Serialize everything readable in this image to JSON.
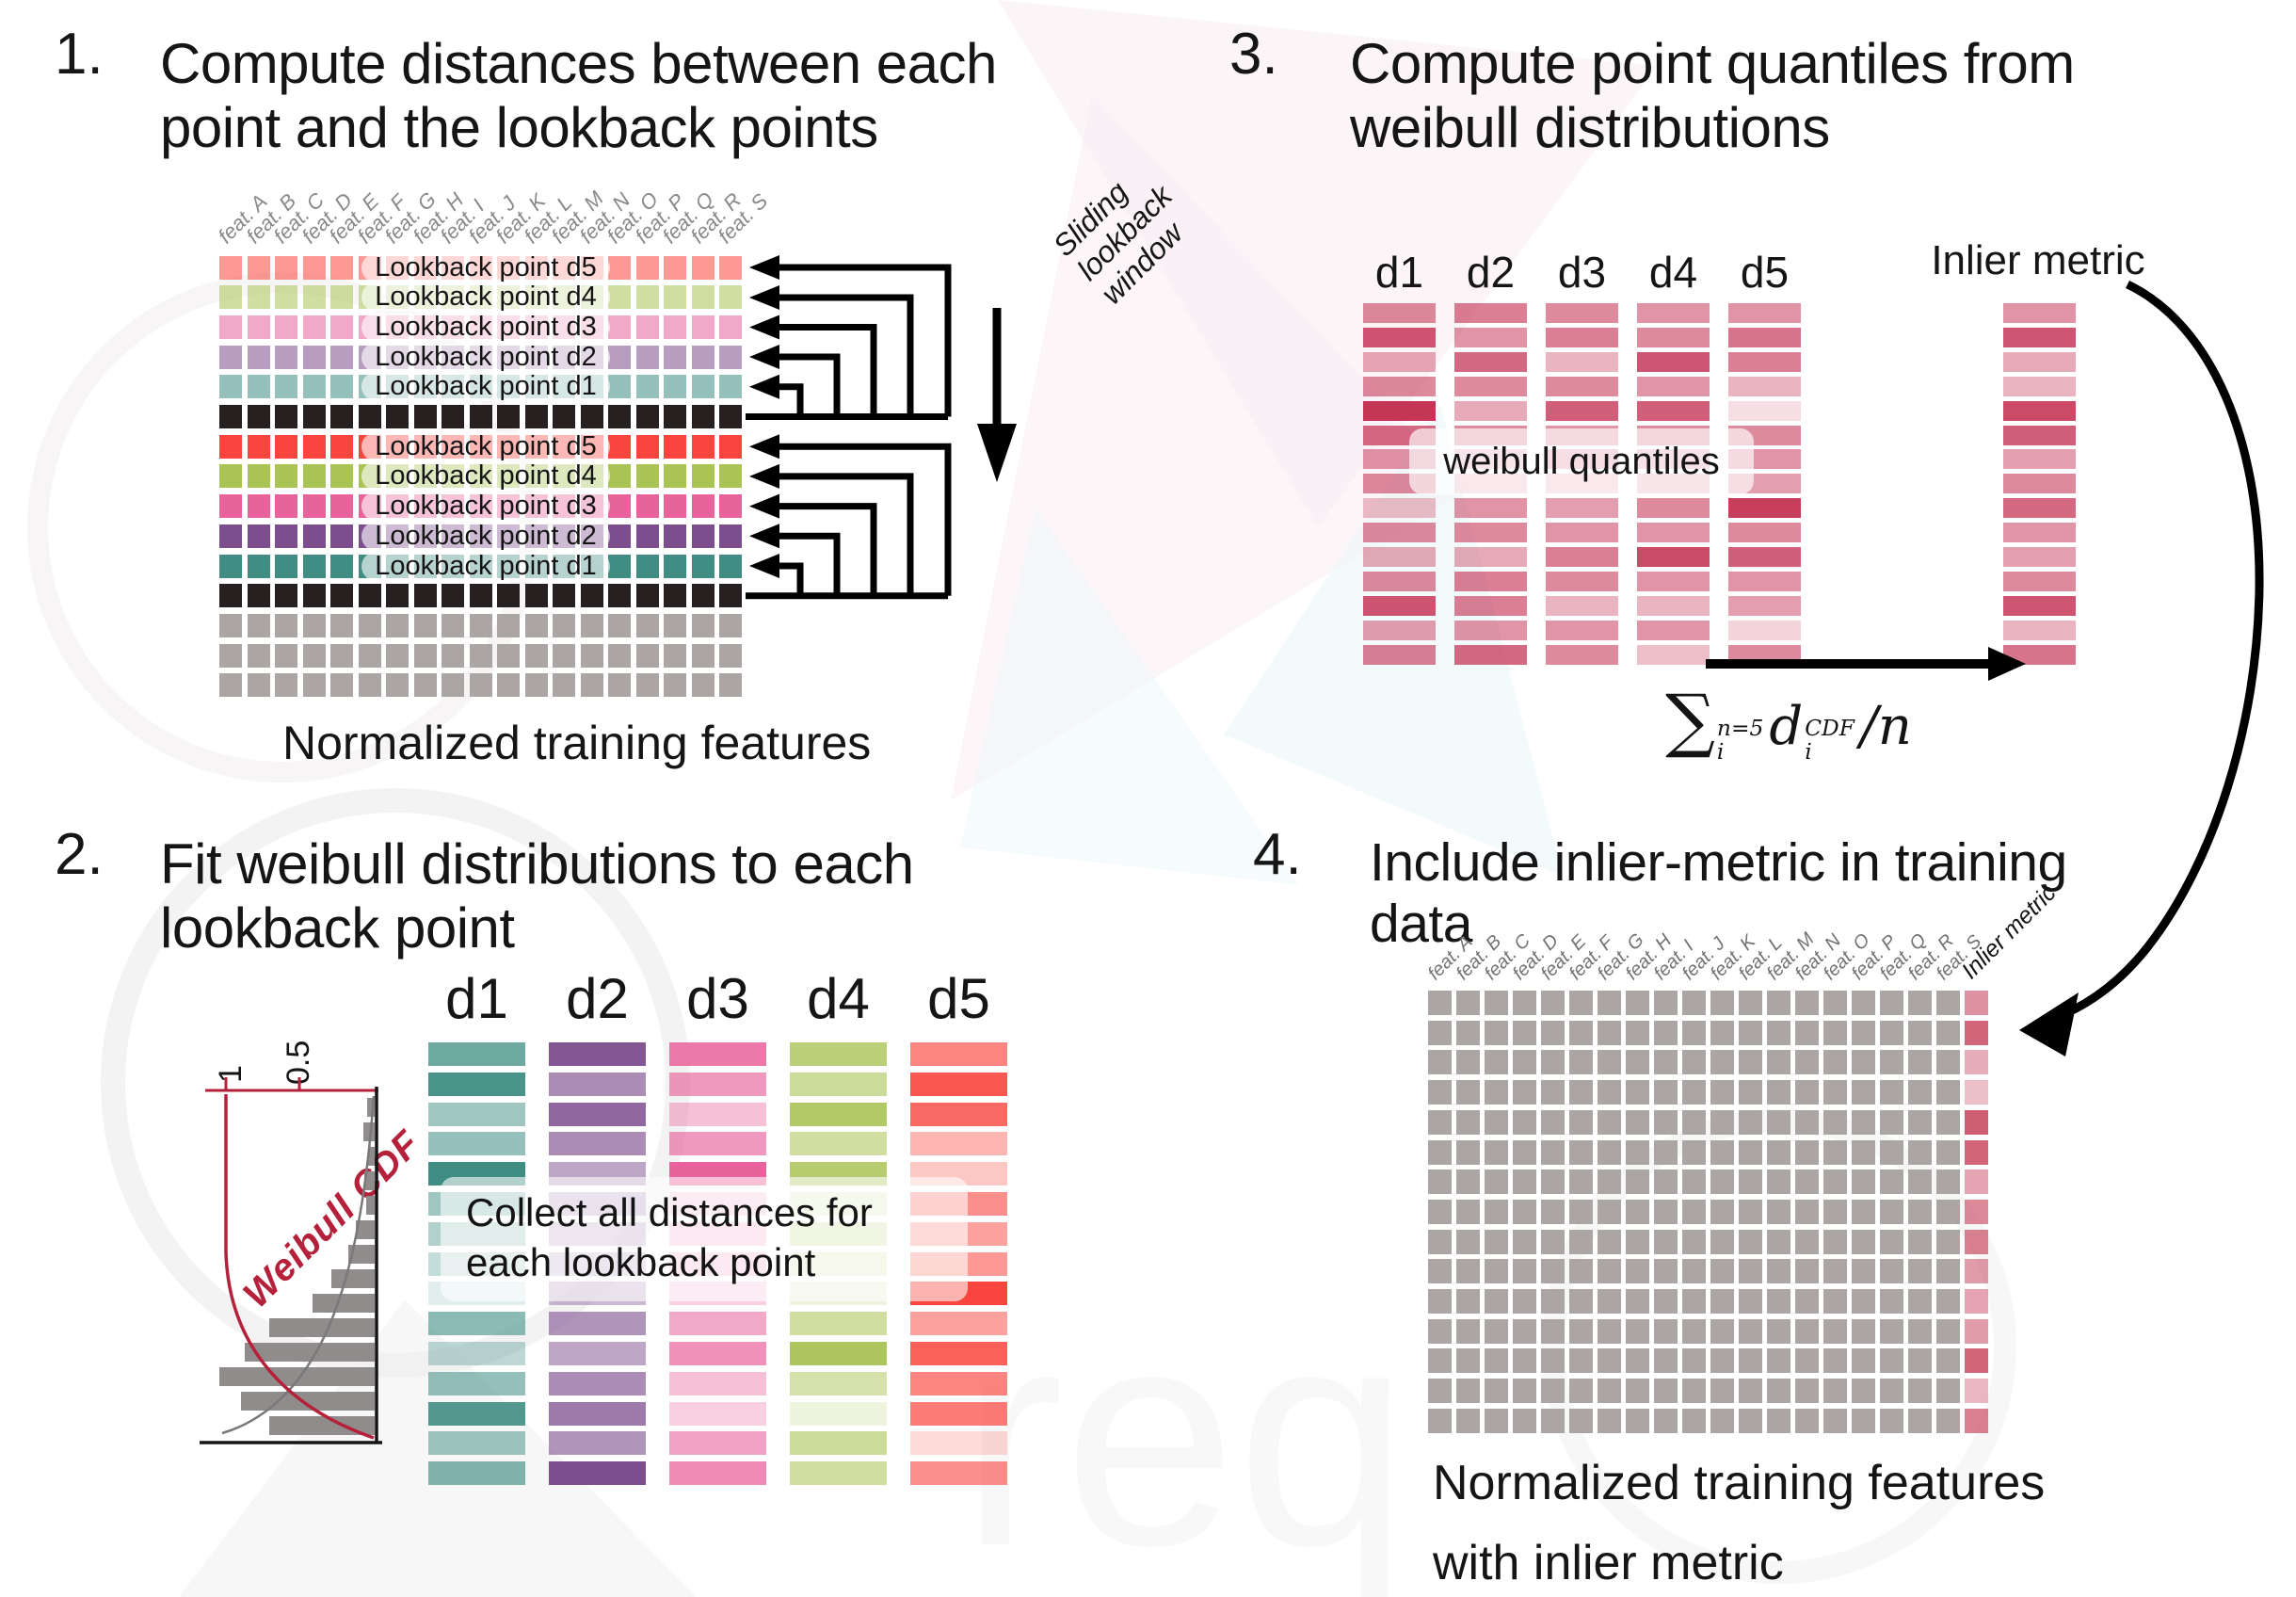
{
  "colors": {
    "d1": "#3F8D83",
    "d2": "#7C4E8E",
    "d3": "#E8639B",
    "d4": "#A9C355",
    "d5": "#F9453D",
    "black": "#262020",
    "gray": "#ABA6A4",
    "crimson": "#C22A4D",
    "pink4": "#C94A63",
    "cdf_red": "#B5213A"
  },
  "panel1": {
    "number": "1.",
    "title1": "Compute distances between each",
    "title2": "point and the lookback points",
    "caption": "Normalized training features",
    "slider_lines": [
      "Sliding",
      "lookback",
      "window"
    ],
    "features": [
      "feat. A",
      "feat. B",
      "feat. C",
      "feat. D",
      "feat. E",
      "feat. F",
      "feat. G",
      "feat. H",
      "feat. I",
      "feat. J",
      "feat. K",
      "feat. L",
      "feat. M",
      "feat. N",
      "feat. O",
      "feat. P",
      "feat. Q",
      "feat. R",
      "feat. S"
    ],
    "rows": [
      {
        "c": "d5",
        "a": 0.55,
        "label": "Lookback point d5"
      },
      {
        "c": "d4",
        "a": 0.55,
        "label": "Lookback point d4"
      },
      {
        "c": "d3",
        "a": 0.55,
        "label": "Lookback point d3"
      },
      {
        "c": "d2",
        "a": 0.55,
        "label": "Lookback point d2"
      },
      {
        "c": "d1",
        "a": 0.55,
        "label": "Lookback point d1"
      },
      {
        "c": "black",
        "a": 1
      },
      {
        "c": "d5",
        "a": 1,
        "label": "Lookback point d5"
      },
      {
        "c": "d4",
        "a": 1,
        "label": "Lookback point d4"
      },
      {
        "c": "d3",
        "a": 1,
        "label": "Lookback point d3"
      },
      {
        "c": "d2",
        "a": 1,
        "label": "Lookback point d2"
      },
      {
        "c": "d1",
        "a": 1,
        "label": "Lookback point d1"
      },
      {
        "c": "black",
        "a": 1
      },
      {
        "c": "gray",
        "a": 1
      },
      {
        "c": "gray",
        "a": 1
      },
      {
        "c": "gray",
        "a": 1
      }
    ]
  },
  "panel2": {
    "number": "2.",
    "title1": "Fit weibull distributions to each",
    "title2": "lookback point",
    "headers": [
      "d1",
      "d2",
      "d3",
      "d4",
      "d5"
    ],
    "overlay1": "Collect all distances for",
    "overlay2": "each lookback point",
    "hist": {
      "label": "Weibull CDF",
      "tick_top": "1",
      "tick_mid": "0.5",
      "bars": [
        8,
        12,
        7,
        11,
        9,
        20,
        28,
        46,
        66,
        112,
        138,
        165,
        142,
        112
      ]
    },
    "columns": {
      "d1": [
        0.75,
        0.95,
        0.5,
        0.55,
        1.0,
        0.5,
        0.4,
        0.3,
        0.15,
        0.6,
        0.35,
        0.55,
        0.9,
        0.5,
        0.65
      ],
      "d2": [
        0.95,
        0.65,
        0.85,
        0.65,
        0.5,
        0.4,
        0.35,
        0.3,
        0.4,
        0.6,
        0.5,
        0.65,
        0.75,
        0.6,
        1.0
      ],
      "d3": [
        0.85,
        0.65,
        0.4,
        0.65,
        1.0,
        0.3,
        0.35,
        0.35,
        0.3,
        0.55,
        0.7,
        0.4,
        0.3,
        0.6,
        0.75
      ],
      "d4": [
        0.8,
        0.6,
        0.9,
        0.55,
        0.85,
        0.25,
        0.4,
        0.3,
        0.2,
        0.55,
        0.95,
        0.5,
        0.2,
        0.6,
        0.55
      ],
      "d5": [
        0.65,
        0.9,
        0.8,
        0.4,
        0.3,
        0.6,
        0.5,
        0.55,
        1.0,
        0.5,
        0.85,
        0.65,
        0.7,
        0.2,
        0.6
      ]
    }
  },
  "panel3": {
    "number": "3.",
    "title1": "Compute point quantiles from",
    "title2": "weibull distributions",
    "headers": [
      "d1",
      "d2",
      "d3",
      "d4",
      "d5"
    ],
    "inlier_header": "Inlier metric",
    "overlay": "weibull quantiles",
    "columns": [
      [
        0.55,
        0.8,
        0.4,
        0.55,
        0.95,
        0.7,
        0.5,
        0.55,
        0.3,
        0.55,
        0.4,
        0.55,
        0.8,
        0.45,
        0.6
      ],
      [
        0.6,
        0.5,
        0.7,
        0.55,
        0.4,
        0.55,
        0.35,
        0.3,
        0.5,
        0.55,
        0.4,
        0.6,
        0.6,
        0.5,
        0.7
      ],
      [
        0.55,
        0.6,
        0.35,
        0.55,
        0.75,
        0.5,
        0.45,
        0.3,
        0.45,
        0.5,
        0.6,
        0.55,
        0.35,
        0.5,
        0.55
      ],
      [
        0.5,
        0.55,
        0.8,
        0.5,
        0.75,
        0.55,
        0.4,
        0.35,
        0.55,
        0.5,
        0.85,
        0.5,
        0.35,
        0.5,
        0.3
      ],
      [
        0.5,
        0.65,
        0.6,
        0.35,
        0.15,
        0.55,
        0.5,
        0.45,
        0.9,
        0.55,
        0.75,
        0.5,
        0.45,
        0.2,
        0.55
      ]
    ],
    "inlier": [
      0.5,
      0.8,
      0.4,
      0.35,
      0.85,
      0.75,
      0.45,
      0.55,
      0.7,
      0.5,
      0.45,
      0.55,
      0.8,
      0.35,
      0.65
    ],
    "formula": {
      "sum": "∑",
      "sup": "n=5",
      "sub": "i",
      "var": "d",
      "var_sup": "CDF",
      "var_sub": "i",
      "tail": "/n"
    }
  },
  "panel4": {
    "number": "4.",
    "title1": "Include inlier-metric in training",
    "title2": "data",
    "features": [
      "feat. A",
      "feat. B",
      "feat. C",
      "feat. D",
      "feat. E",
      "feat. F",
      "feat. G",
      "feat. H",
      "feat. I",
      "feat. J",
      "feat. K",
      "feat. L",
      "feat. M",
      "feat. N",
      "feat. O",
      "feat. P",
      "feat. Q",
      "feat. R",
      "feat. S"
    ],
    "inlier_label": "Inlier metric",
    "inlier": [
      0.6,
      0.85,
      0.45,
      0.35,
      0.9,
      0.85,
      0.5,
      0.65,
      0.7,
      0.55,
      0.5,
      0.55,
      0.85,
      0.4,
      0.7
    ],
    "caption1": "Normalized training features",
    "caption2": "with inlier metric"
  }
}
